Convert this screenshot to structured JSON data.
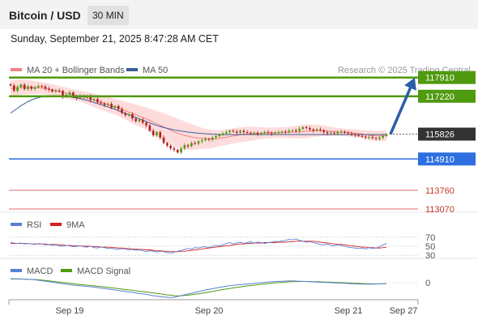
{
  "header": {
    "title": "Bitcoin / USD",
    "interval": "30 MIN",
    "timestamp": "Sunday, September 21, 2025 8:47:28 AM CET"
  },
  "colors": {
    "resistance": "#4f9a0f",
    "support": "#2d6fe0",
    "target": "#e36a6a",
    "ma20": "#f08080",
    "ma50": "#3a5f9a",
    "bollinger": "#ffd6d6",
    "current": "#333333",
    "arrow": "#2b5ea6",
    "rsi": "#5b7fd4",
    "rsi_ma": "#d62020",
    "macd": "#5b7fd4",
    "macd_signal": "#4f9a0f"
  },
  "chart_data": {
    "type": "candlestick",
    "credit": "Research © 2025 Trading Central",
    "legend": [
      {
        "label": "MA 20 + Bollinger Bands",
        "color": "#f08080"
      },
      {
        "label": "MA 50",
        "color": "#3a5f9a"
      }
    ],
    "x_ticks": [
      "Sep 19",
      "Sep 20",
      "Sep 21",
      "Sep 27"
    ],
    "price_range": [
      112950,
      118080
    ],
    "levels": [
      {
        "value": 117910,
        "label": "117910",
        "kind": "resistance"
      },
      {
        "value": 117220,
        "label": "117220",
        "kind": "resistance"
      },
      {
        "value": 115826,
        "label": "115826",
        "kind": "current"
      },
      {
        "value": 114910,
        "label": "114910",
        "kind": "support"
      },
      {
        "value": 113760,
        "label": "113760",
        "kind": "target"
      },
      {
        "value": 113070,
        "label": "113070",
        "kind": "target"
      }
    ],
    "close": [
      117620,
      117420,
      117560,
      117650,
      117480,
      117580,
      117490,
      117550,
      117600,
      117580,
      117500,
      117460,
      117390,
      117430,
      117420,
      117200,
      117280,
      117360,
      117210,
      117150,
      117240,
      117180,
      117220,
      117080,
      117120,
      117000,
      116960,
      116900,
      116940,
      116800,
      116860,
      116750,
      116600,
      116520,
      116560,
      116400,
      116300,
      116360,
      116250,
      116150,
      115950,
      115780,
      115900,
      115700,
      115500,
      115400,
      115300,
      115250,
      115150,
      115300,
      115420,
      115380,
      115500,
      115480,
      115560,
      115600,
      115650,
      115620,
      115700,
      115750,
      115800,
      115850,
      115900,
      115950,
      115920,
      115880,
      115950,
      115900,
      115880,
      115850,
      115870,
      115820,
      115860,
      115900,
      115880,
      115840,
      115870,
      115890,
      115920,
      115900,
      115950,
      115970,
      115940,
      116020,
      116080,
      116050,
      116000,
      115950,
      116000,
      115970,
      115900,
      115860,
      115880,
      115850,
      115900,
      115920,
      115880,
      115850,
      115820,
      115780,
      115760,
      115740,
      115700,
      115720,
      115680,
      115650,
      115700,
      115760,
      115826
    ],
    "ma20": [
      117500,
      117520,
      117540,
      117560,
      117560,
      117560,
      117550,
      117540,
      117530,
      117520,
      117500,
      117480,
      117460,
      117430,
      117400,
      117370,
      117340,
      117310,
      117280,
      117250,
      117220,
      117190,
      117150,
      117110,
      117070,
      117030,
      116990,
      116950,
      116910,
      116870,
      116830,
      116790,
      116740,
      116690,
      116640,
      116590,
      116540,
      116490,
      116440,
      116390,
      116330,
      116270,
      116210,
      116150,
      116090,
      116030,
      115970,
      115910,
      115860,
      115820,
      115780,
      115750,
      115720,
      115700,
      115680,
      115670,
      115660,
      115650,
      115650,
      115660,
      115670,
      115690,
      115710,
      115740,
      115760,
      115780,
      115800,
      115820,
      115830,
      115840,
      115850,
      115860,
      115860,
      115870,
      115870,
      115870,
      115880,
      115880,
      115880,
      115890,
      115890,
      115900,
      115900,
      115910,
      115920,
      115930,
      115940,
      115950,
      115950,
      115950,
      115950,
      115940,
      115930,
      115920,
      115910,
      115900,
      115890,
      115880,
      115870,
      115860,
      115850,
      115830,
      115810,
      115790,
      115770,
      115760,
      115760,
      115770,
      115780
    ],
    "bb_upper": [
      117800,
      117820,
      117830,
      117840,
      117830,
      117820,
      117800,
      117780,
      117760,
      117740,
      117710,
      117690,
      117660,
      117630,
      117600,
      117570,
      117540,
      117510,
      117480,
      117450,
      117420,
      117400,
      117380,
      117350,
      117320,
      117290,
      117260,
      117220,
      117190,
      117160,
      117120,
      117090,
      117060,
      117020,
      116990,
      116960,
      116920,
      116880,
      116840,
      116800,
      116760,
      116720,
      116680,
      116640,
      116600,
      116550,
      116500,
      116450,
      116400,
      116350,
      116300,
      116250,
      116200,
      116150,
      116100,
      116060,
      116030,
      116000,
      115980,
      115970,
      115970,
      115980,
      116000,
      116020,
      116040,
      116060,
      116080,
      116090,
      116100,
      116100,
      116100,
      116090,
      116080,
      116080,
      116070,
      116070,
      116070,
      116080,
      116080,
      116090,
      116100,
      116120,
      116130,
      116150,
      116170,
      116180,
      116180,
      116180,
      116170,
      116160,
      116140,
      116120,
      116100,
      116080,
      116060,
      116040,
      116030,
      116020,
      116010,
      116000,
      115990,
      115980,
      115970,
      115960,
      115950,
      115950,
      115950,
      115960,
      115980
    ],
    "bb_lower": [
      117200,
      117220,
      117250,
      117280,
      117290,
      117300,
      117300,
      117300,
      117300,
      117300,
      117290,
      117270,
      117260,
      117230,
      117200,
      117170,
      117140,
      117110,
      117080,
      117050,
      117020,
      116980,
      116920,
      116870,
      116820,
      116770,
      116720,
      116680,
      116630,
      116580,
      116540,
      116490,
      116420,
      116360,
      116290,
      116220,
      116160,
      116100,
      116040,
      115980,
      115900,
      115820,
      115740,
      115660,
      115580,
      115510,
      115440,
      115370,
      115320,
      115290,
      115260,
      115250,
      115240,
      115250,
      115260,
      115280,
      115290,
      115300,
      115320,
      115350,
      115370,
      115400,
      115420,
      115460,
      115480,
      115500,
      115520,
      115550,
      115560,
      115580,
      115600,
      115630,
      115640,
      115660,
      115670,
      115670,
      115690,
      115680,
      115680,
      115690,
      115680,
      115680,
      115670,
      115670,
      115670,
      115680,
      115700,
      115720,
      115730,
      115740,
      115760,
      115760,
      115760,
      115760,
      115760,
      115760,
      115750,
      115740,
      115730,
      115720,
      115710,
      115680,
      115650,
      115620,
      115590,
      115570,
      115570,
      115580,
      115580
    ],
    "ma50": [
      116600,
      116690,
      116780,
      116870,
      116950,
      117020,
      117080,
      117130,
      117170,
      117200,
      117220,
      117230,
      117240,
      117240,
      117230,
      117220,
      117210,
      117200,
      117180,
      117160,
      117130,
      117100,
      117070,
      117030,
      116990,
      116950,
      116910,
      116870,
      116830,
      116780,
      116740,
      116690,
      116640,
      116590,
      116540,
      116490,
      116440,
      116390,
      116340,
      116290,
      116240,
      116190,
      116150,
      116110,
      116070,
      116040,
      116010,
      115980,
      115960,
      115940,
      115920,
      115900,
      115890,
      115870,
      115860,
      115850,
      115840,
      115830,
      115820,
      115820,
      115810,
      115810,
      115810,
      115810,
      115810,
      115810,
      115810,
      115810,
      115810,
      115810,
      115810,
      115810,
      115810,
      115810,
      115810,
      115810,
      115810,
      115810,
      115810,
      115810,
      115810,
      115810,
      115810,
      115810,
      115810,
      115810,
      115810,
      115810,
      115810,
      115810,
      115810,
      115810,
      115810,
      115810,
      115810,
      115810,
      115810,
      115810,
      115810,
      115810,
      115810,
      115810,
      115810,
      115810,
      115810,
      115810,
      115810,
      115810,
      115810
    ],
    "forecast": [
      115826,
      117910
    ],
    "rsi": {
      "legend": [
        {
          "label": "RSI",
          "color": "#5b7fd4"
        },
        {
          "label": "9MA",
          "color": "#d62020"
        }
      ],
      "levels": [
        70,
        50,
        30
      ],
      "level_labels": [
        "70",
        "50",
        "30"
      ],
      "range": [
        25,
        75
      ],
      "rsi": [
        58,
        57,
        56,
        57,
        55,
        56,
        55,
        54,
        56,
        55,
        53,
        54,
        52,
        53,
        51,
        50,
        52,
        51,
        49,
        50,
        51,
        49,
        48,
        50,
        47,
        46,
        48,
        47,
        45,
        46,
        44,
        43,
        45,
        44,
        42,
        43,
        41,
        42,
        40,
        38,
        40,
        39,
        37,
        39,
        38,
        36,
        35,
        37,
        39,
        41,
        43,
        45,
        44,
        47,
        46,
        48,
        49,
        47,
        50,
        52,
        51,
        53,
        56,
        58,
        55,
        57,
        59,
        56,
        58,
        60,
        57,
        59,
        58,
        56,
        58,
        59,
        61,
        60,
        62,
        63,
        65,
        64,
        66,
        63,
        61,
        59,
        60,
        58,
        56,
        54,
        53,
        55,
        52,
        51,
        53,
        52,
        50,
        48,
        47,
        46,
        45,
        46,
        44,
        47,
        45,
        46,
        49,
        53,
        56
      ],
      "ma": [
        56,
        56,
        56,
        56,
        56,
        56,
        55,
        55,
        55,
        55,
        55,
        54,
        54,
        54,
        53,
        53,
        52,
        52,
        51,
        51,
        51,
        50,
        50,
        50,
        49,
        49,
        48,
        48,
        48,
        47,
        47,
        46,
        46,
        45,
        45,
        44,
        44,
        43,
        43,
        42,
        42,
        41,
        40,
        40,
        39,
        39,
        38,
        38,
        38,
        39,
        39,
        40,
        41,
        42,
        43,
        44,
        45,
        46,
        47,
        48,
        49,
        50,
        51,
        52,
        53,
        54,
        55,
        55,
        56,
        56,
        57,
        57,
        57,
        58,
        58,
        58,
        58,
        59,
        59,
        59,
        60,
        60,
        61,
        61,
        61,
        61,
        61,
        61,
        60,
        59,
        58,
        57,
        56,
        55,
        54,
        54,
        53,
        52,
        51,
        50,
        49,
        48,
        48,
        47,
        47,
        46,
        46,
        47,
        48
      ]
    },
    "macd": {
      "legend": [
        {
          "label": "MACD",
          "color": "#5b7fd4"
        },
        {
          "label": "MACD Signal",
          "color": "#4f9a0f"
        }
      ],
      "zero_label": "0",
      "range": [
        -950,
        450
      ],
      "macd": [
        250,
        240,
        235,
        230,
        220,
        210,
        200,
        180,
        150,
        120,
        90,
        60,
        30,
        0,
        -30,
        -60,
        -90,
        -120,
        -150,
        -170,
        -190,
        -210,
        -230,
        -250,
        -270,
        -300,
        -330,
        -360,
        -390,
        -420,
        -450,
        -480,
        -510,
        -540,
        -570,
        -600,
        -630,
        -660,
        -690,
        -720,
        -760,
        -800,
        -830,
        -860,
        -880,
        -900,
        -920,
        -900,
        -850,
        -800,
        -750,
        -700,
        -650,
        -600,
        -550,
        -500,
        -450,
        -410,
        -370,
        -330,
        -290,
        -250,
        -220,
        -190,
        -160,
        -140,
        -120,
        -100,
        -80,
        -60,
        -40,
        -20,
        0,
        20,
        40,
        60,
        70,
        80,
        90,
        100,
        110,
        110,
        100,
        90,
        80,
        70,
        60,
        50,
        40,
        30,
        20,
        10,
        0,
        -10,
        -20,
        -30,
        -40,
        -50,
        -60,
        -70,
        -80,
        -90,
        -90,
        -90,
        -90,
        -80,
        -70,
        -60,
        -50
      ],
      "signal": [
        230,
        230,
        230,
        225,
        220,
        212,
        204,
        195,
        180,
        160,
        138,
        115,
        90,
        66,
        40,
        14,
        -12,
        -38,
        -62,
        -86,
        -108,
        -130,
        -152,
        -174,
        -196,
        -218,
        -242,
        -266,
        -290,
        -316,
        -342,
        -368,
        -394,
        -420,
        -446,
        -472,
        -498,
        -524,
        -550,
        -576,
        -604,
        -632,
        -662,
        -690,
        -720,
        -748,
        -776,
        -800,
        -810,
        -806,
        -792,
        -772,
        -746,
        -716,
        -684,
        -650,
        -614,
        -578,
        -540,
        -502,
        -464,
        -426,
        -390,
        -356,
        -322,
        -290,
        -260,
        -230,
        -202,
        -175,
        -149,
        -124,
        -100,
        -77,
        -54,
        -32,
        -12,
        6,
        22,
        36,
        50,
        60,
        68,
        72,
        74,
        73,
        70,
        66,
        61,
        54,
        47,
        39,
        30,
        21,
        12,
        3,
        -6,
        -15,
        -24,
        -33,
        -42,
        -51,
        -58,
        -64,
        -68,
        -70,
        -70,
        -68,
        -64
      ]
    }
  }
}
